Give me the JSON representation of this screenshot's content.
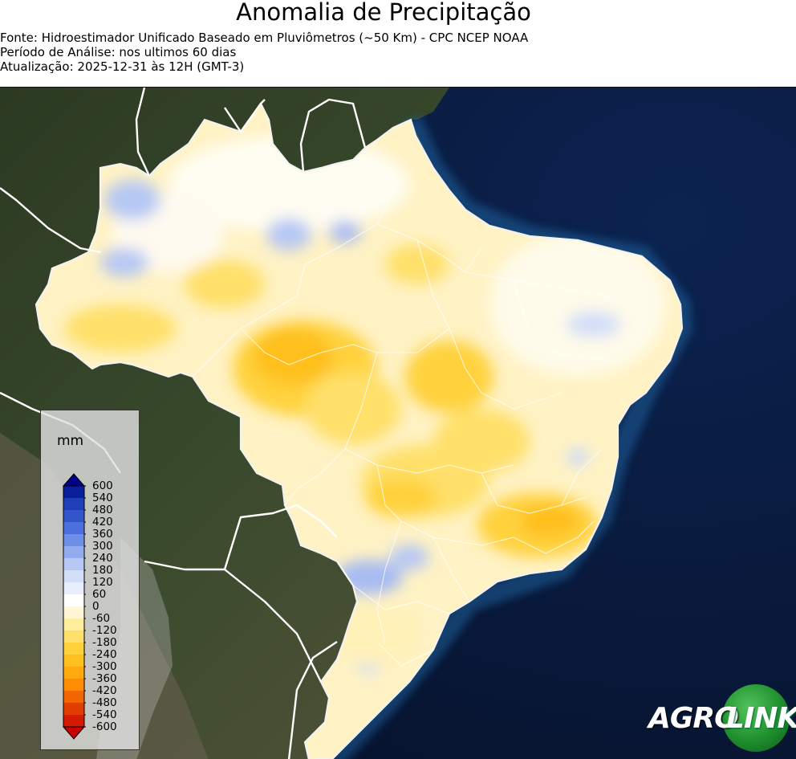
{
  "header": {
    "title": "Anomalia de Precipitação",
    "source_line": "Fonte: Hidroestimador Unificado Baseado em Pluviômetros (~50 Km) - CPC NCEP NOAA",
    "period_line": "Período de Análise: nos ultimos 60 dias",
    "update_line": "Atualização: 2025-12-31 às 12H (GMT-3)"
  },
  "legend": {
    "unit": "mm",
    "ticks": [
      "600",
      "540",
      "480",
      "420",
      "360",
      "300",
      "240",
      "180",
      "120",
      "60",
      "0",
      "-60",
      "-120",
      "-180",
      "-240",
      "-300",
      "-360",
      "-420",
      "-480",
      "-540",
      "-600"
    ],
    "colors": {
      "max_extend": "#00008b",
      "min_extend": "#c80000",
      "wet": [
        "#0a1f9a",
        "#1f3fb8",
        "#3355cc",
        "#4d6fdd",
        "#6f8ee8",
        "#93abef",
        "#b6c7f4",
        "#d2ddf8",
        "#e8eefb"
      ],
      "neutral": "#ffffff",
      "dry": [
        "#fff6d6",
        "#ffee9e",
        "#ffe06a",
        "#ffd23c",
        "#ffbf1c",
        "#ffa90c",
        "#ff8c05",
        "#f26500",
        "#e03e00",
        "#d41a00"
      ]
    }
  },
  "map": {
    "ocean_color": "#0b1f45",
    "land_color": "#2e3a24",
    "brazil_base_color": "#fff2c4"
  },
  "logo": {
    "part1": "AGRO",
    "part2": "LINK"
  }
}
